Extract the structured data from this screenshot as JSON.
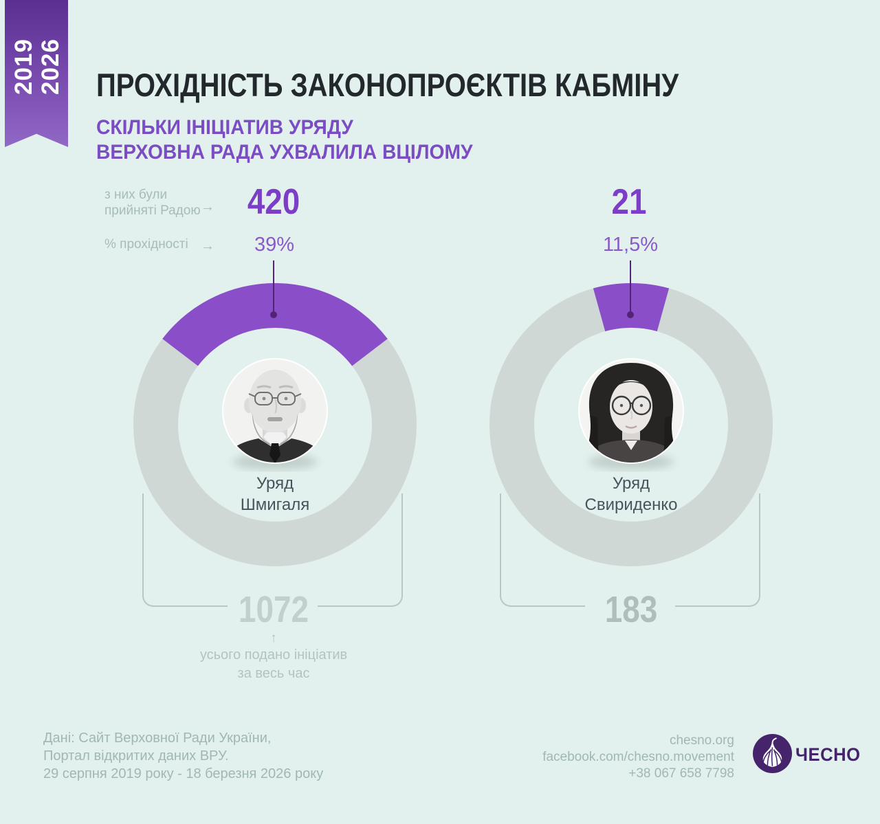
{
  "ribbon": {
    "year_start": "2019",
    "year_end": "2026"
  },
  "header": {
    "title": "ПРОХІДНІСТЬ ЗАКОНОПРОЄКТІВ КАБМІНУ",
    "subtitle_line1": "СКІЛЬКИ ІНІЦІАТИВ УРЯДУ",
    "subtitle_line2": "ВЕРХОВНА РАДА УХВАЛИЛА ВЦІЛОМУ"
  },
  "labels": {
    "accepted_line1": "з них були",
    "accepted_line2": "прийняті Радою",
    "pct": "% прохідності",
    "arrow_right": "→"
  },
  "charts": [
    {
      "accepted": "420",
      "pct": "39%",
      "name_line1": "Уряд",
      "name_line2": "Шмигаля",
      "total": "1072"
    },
    {
      "accepted": "21",
      "pct": "11,5%",
      "name_line1": "Уряд",
      "name_line2": "Свириденко",
      "total": "183"
    }
  ],
  "caption": {
    "arrow_up": "↑",
    "line1": "усього подано ініціатив",
    "line2": "за весь час"
  },
  "footer_left": {
    "line1": "Дані: Сайт Верховної Ради України,",
    "line2": "Портал відкритих даних ВРУ.",
    "line3": "29 серпня 2019 року - 18 березня 2026 року"
  },
  "footer_right": {
    "line1": "chesno.org",
    "line2": "facebook.com/chesno.movement",
    "line3": "+38 067 658 7798",
    "brand": "ЧЕСНО"
  },
  "colors": {
    "bg": "#e3f1ee",
    "ring": "#cfd8d5",
    "accent": "#8a4ec8",
    "accent_dark": "#522478",
    "number_purple": "#7c3ec6",
    "pct_purple": "#8a5ac9",
    "subtitle_purple": "#7b4cc4",
    "title_dark": "#23282c",
    "label_gray": "#a6bcb9",
    "name_dark": "#46545c",
    "big_gray_left": "#c3cfcc",
    "big_gray_right": "#b0bdba",
    "bracket_gray": "#b9c7c4",
    "caption_gray": "#b3c3c0",
    "footer_gray": "#a0b7b4",
    "logo_purple": "#45246b",
    "ribbon_top": "#5a2f90",
    "ribbon_bottom": "#9168c6"
  },
  "chart_data": {
    "type": "donut",
    "title": "ПРОХІДНІСТЬ ЗАКОНОПРОЄКТІВ КАБМІНУ",
    "subtitle": "СКІЛЬКИ ІНІЦІАТИВ УРЯДУ ВЕРХОВНА РАДА УХВАЛИЛА ВЦІЛОМУ",
    "period_years": "2019–2026",
    "scale_degrees_full": 270,
    "legend_position": "none",
    "series": [
      {
        "name": "Уряд Шмигаля",
        "accepted_by_rada": 420,
        "passage_pct": 39,
        "total_submitted": 1072
      },
      {
        "name": "Уряд Свириденко",
        "accepted_by_rada": 21,
        "passage_pct": 11.5,
        "total_submitted": 183
      }
    ],
    "annotations": [
      "з них були прийняті Радою",
      "% прохідності",
      "усього подано ініціатив за весь час"
    ],
    "source": "Дані: Сайт Верховної Ради України, Портал відкритих даних ВРУ. 29 серпня 2019 року - 18 березня 2026 року"
  }
}
